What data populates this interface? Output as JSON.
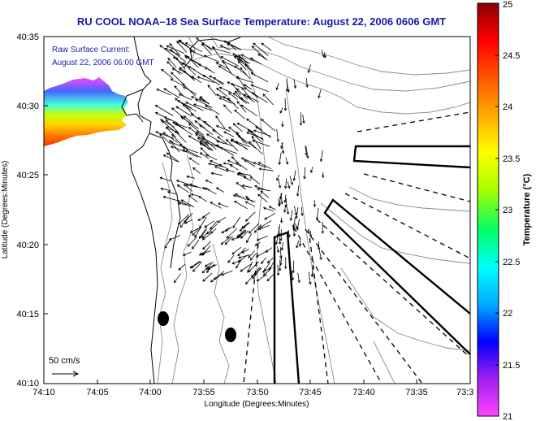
{
  "map": {
    "title": "RU COOL  NOAA–18  Sea Surface Temperature:  August 22, 2006 0606 GMT",
    "current_legend": {
      "line1": "Raw Surface Current:",
      "line2": "August 22, 2006 06:00 GMT",
      "scale_label": "50 cm/s"
    },
    "x_axis": {
      "label": "Longitude (Degrees:Minutes)",
      "ticks": [
        "74:10",
        "74:05",
        "74:00",
        "73:55",
        "73:50",
        "73:45",
        "73:40",
        "73:35",
        "73:3"
      ]
    },
    "y_axis": {
      "label": "Latitude (Degrees:Minutes)",
      "ticks": [
        "40:35",
        "40:30",
        "40:25",
        "40:20",
        "40:15",
        "40:10"
      ]
    },
    "colorbar": {
      "label": "Temperature (°C)",
      "min": 21,
      "max": 25,
      "ticks": [
        "25",
        "24.5",
        "24",
        "23.5",
        "23",
        "22.5",
        "22",
        "21.5",
        "21"
      ],
      "colors": [
        "#ff44ff",
        "#a020f0",
        "#0000ff",
        "#00aaff",
        "#00ffff",
        "#00ff66",
        "#aaff00",
        "#ffff00",
        "#ffaa00",
        "#ff5500",
        "#ff0000",
        "#8b0000"
      ]
    }
  }
}
